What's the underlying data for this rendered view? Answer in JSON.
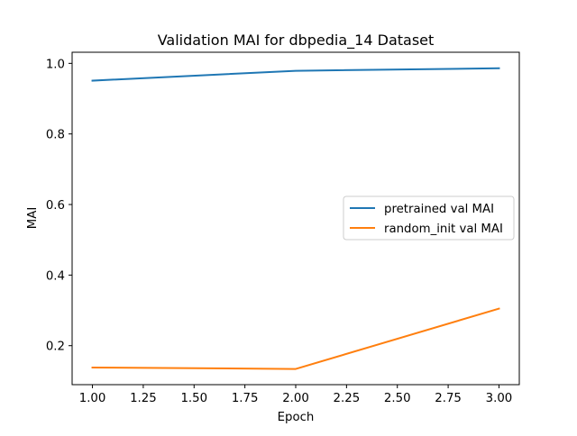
{
  "chart_data": {
    "type": "line",
    "title": "Validation MAI for dbpedia_14 Dataset",
    "xlabel": "Epoch",
    "ylabel": "MAI",
    "x": [
      1.0,
      2.0,
      3.0
    ],
    "xlim": [
      0.9,
      3.1
    ],
    "ylim": [
      0.0895,
      1.0315
    ],
    "xticks": [
      1.0,
      1.25,
      1.5,
      1.75,
      2.0,
      2.25,
      2.5,
      2.75,
      3.0
    ],
    "xtick_labels": [
      "1.00",
      "1.25",
      "1.50",
      "1.75",
      "2.00",
      "2.25",
      "2.50",
      "2.75",
      "3.00"
    ],
    "yticks": [
      0.2,
      0.4,
      0.6,
      0.8,
      1.0
    ],
    "ytick_labels": [
      "0.2",
      "0.4",
      "0.6",
      "0.8",
      "1.0"
    ],
    "grid": false,
    "legend_position": "center-right",
    "series": [
      {
        "name": "pretrained val MAI",
        "color": "#1f77b4",
        "values": [
          0.951,
          0.979,
          0.986
        ]
      },
      {
        "name": "random_init val MAI",
        "color": "#ff7f0e",
        "values": [
          0.138,
          0.134,
          0.305
        ]
      }
    ]
  }
}
